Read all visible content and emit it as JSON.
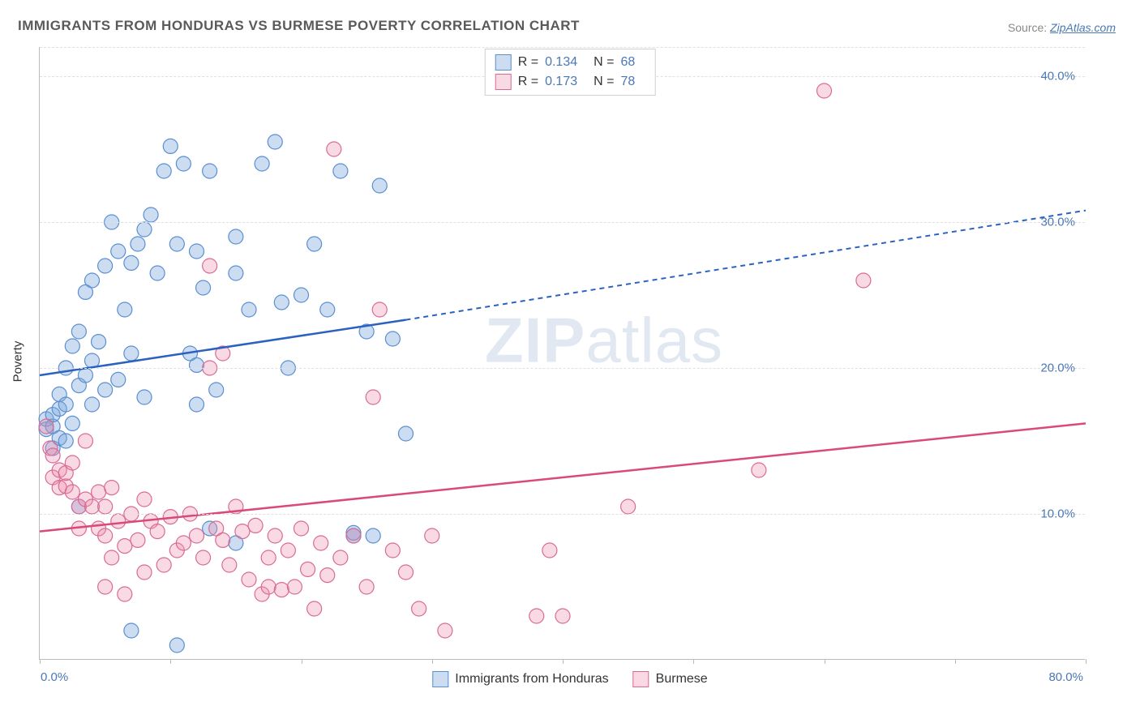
{
  "title": "IMMIGRANTS FROM HONDURAS VS BURMESE POVERTY CORRELATION CHART",
  "source_label": "Source: ",
  "source_link": "ZipAtlas.com",
  "ylabel": "Poverty",
  "watermark_zip": "ZIP",
  "watermark_atlas": "atlas",
  "chart": {
    "type": "scatter",
    "xlim": [
      0,
      80
    ],
    "ylim": [
      0,
      42
    ],
    "yticks": [
      10,
      20,
      30,
      40
    ],
    "ytick_labels": [
      "10.0%",
      "20.0%",
      "30.0%",
      "40.0%"
    ],
    "xtick_positions": [
      0,
      10,
      20,
      30,
      40,
      50,
      60,
      70,
      80
    ],
    "xaxis_label_left": "0.0%",
    "xaxis_label_right": "80.0%",
    "grid_color": "#e0e0e0",
    "axis_color": "#bbbbbb",
    "background": "#ffffff"
  },
  "series": [
    {
      "name": "Immigrants from Honduras",
      "r": "0.134",
      "n": "68",
      "fill": "rgba(120,165,220,0.38)",
      "stroke": "#5a8fd0",
      "line_color": "#2b62c0",
      "marker_radius": 9,
      "line_solid": {
        "x1": 0,
        "y1": 19.5,
        "x2": 28,
        "y2": 23.3
      },
      "line_dashed": {
        "x1": 28,
        "y1": 23.3,
        "x2": 80,
        "y2": 30.8
      },
      "points": [
        [
          0.5,
          15.8
        ],
        [
          0.5,
          16.5
        ],
        [
          1,
          16
        ],
        [
          1,
          16.8
        ],
        [
          1,
          14.5
        ],
        [
          1.5,
          15.2
        ],
        [
          1.5,
          17.2
        ],
        [
          1.5,
          18.2
        ],
        [
          2,
          15
        ],
        [
          2,
          17.5
        ],
        [
          2,
          20
        ],
        [
          2.5,
          16.2
        ],
        [
          2.5,
          21.5
        ],
        [
          3,
          18.8
        ],
        [
          3,
          22.5
        ],
        [
          3.5,
          19.5
        ],
        [
          3.5,
          25.2
        ],
        [
          4,
          17.5
        ],
        [
          4,
          20.5
        ],
        [
          4,
          26
        ],
        [
          4.5,
          21.8
        ],
        [
          5,
          18.5
        ],
        [
          5,
          27
        ],
        [
          5.5,
          30
        ],
        [
          6,
          19.2
        ],
        [
          6,
          28
        ],
        [
          6.5,
          24
        ],
        [
          7,
          21
        ],
        [
          7,
          27.2
        ],
        [
          7.5,
          28.5
        ],
        [
          8,
          18
        ],
        [
          8,
          29.5
        ],
        [
          8.5,
          30.5
        ],
        [
          9,
          26.5
        ],
        [
          9.5,
          33.5
        ],
        [
          10,
          35.2
        ],
        [
          10.5,
          28.5
        ],
        [
          11,
          34
        ],
        [
          11.5,
          21
        ],
        [
          12,
          20.2
        ],
        [
          12,
          28
        ],
        [
          12.5,
          25.5
        ],
        [
          13,
          33.5
        ],
        [
          13.5,
          18.5
        ],
        [
          15,
          29
        ],
        [
          15,
          26.5
        ],
        [
          16,
          24
        ],
        [
          17,
          34
        ],
        [
          18,
          35.5
        ],
        [
          18.5,
          24.5
        ],
        [
          19,
          20
        ],
        [
          20,
          25
        ],
        [
          21,
          28.5
        ],
        [
          22,
          24
        ],
        [
          23,
          33.5
        ],
        [
          24,
          8.5
        ],
        [
          25,
          22.5
        ],
        [
          26,
          32.5
        ],
        [
          27,
          22
        ],
        [
          28,
          15.5
        ],
        [
          25.5,
          8.5
        ],
        [
          10.5,
          1
        ],
        [
          7,
          2
        ],
        [
          24,
          8.7
        ],
        [
          15,
          8
        ],
        [
          13,
          9
        ],
        [
          12,
          17.5
        ],
        [
          3,
          10.5
        ]
      ]
    },
    {
      "name": "Burmese",
      "r": "0.173",
      "n": "78",
      "fill": "rgba(235,140,170,0.32)",
      "stroke": "#d96a95",
      "line_color": "#d94a7a",
      "marker_radius": 9,
      "line_solid": {
        "x1": 0,
        "y1": 8.8,
        "x2": 80,
        "y2": 16.2
      },
      "points": [
        [
          0.5,
          16
        ],
        [
          0.8,
          14.5
        ],
        [
          1,
          12.5
        ],
        [
          1,
          14
        ],
        [
          1.5,
          13
        ],
        [
          1.5,
          11.8
        ],
        [
          2,
          11.9
        ],
        [
          2,
          12.8
        ],
        [
          2.5,
          11.5
        ],
        [
          2.5,
          13.5
        ],
        [
          3,
          10.5
        ],
        [
          3,
          9
        ],
        [
          3.5,
          11
        ],
        [
          3.5,
          15
        ],
        [
          4,
          10.5
        ],
        [
          4.5,
          9
        ],
        [
          4.5,
          11.5
        ],
        [
          5,
          8.5
        ],
        [
          5,
          10.5
        ],
        [
          5.5,
          7
        ],
        [
          5.5,
          11.8
        ],
        [
          6,
          9.5
        ],
        [
          6.5,
          7.8
        ],
        [
          7,
          10
        ],
        [
          7.5,
          8.2
        ],
        [
          8,
          11
        ],
        [
          8,
          6
        ],
        [
          8.5,
          9.5
        ],
        [
          9,
          8.8
        ],
        [
          9.5,
          6.5
        ],
        [
          10,
          9.8
        ],
        [
          10.5,
          7.5
        ],
        [
          11,
          8
        ],
        [
          11.5,
          10
        ],
        [
          12,
          8.5
        ],
        [
          12.5,
          7
        ],
        [
          13,
          27
        ],
        [
          13,
          20
        ],
        [
          13.5,
          9
        ],
        [
          14,
          8.2
        ],
        [
          14,
          21
        ],
        [
          14.5,
          6.5
        ],
        [
          15,
          10.5
        ],
        [
          15.5,
          8.8
        ],
        [
          16,
          5.5
        ],
        [
          16.5,
          9.2
        ],
        [
          17,
          4.5
        ],
        [
          17.5,
          7
        ],
        [
          17.5,
          5
        ],
        [
          18,
          8.5
        ],
        [
          18.5,
          4.8
        ],
        [
          19,
          7.5
        ],
        [
          19.5,
          5
        ],
        [
          20,
          9
        ],
        [
          20.5,
          6.2
        ],
        [
          21,
          3.5
        ],
        [
          21.5,
          8
        ],
        [
          22,
          5.8
        ],
        [
          22.5,
          35
        ],
        [
          23,
          7
        ],
        [
          24,
          8.5
        ],
        [
          25,
          5
        ],
        [
          25.5,
          18
        ],
        [
          26,
          24
        ],
        [
          27,
          7.5
        ],
        [
          28,
          6
        ],
        [
          29,
          3.5
        ],
        [
          30,
          8.5
        ],
        [
          31,
          2
        ],
        [
          38,
          3
        ],
        [
          40,
          3
        ],
        [
          39,
          7.5
        ],
        [
          45,
          10.5
        ],
        [
          55,
          13
        ],
        [
          60,
          39
        ],
        [
          63,
          26
        ],
        [
          5,
          5
        ],
        [
          6.5,
          4.5
        ]
      ]
    }
  ],
  "stats_legend": {
    "r_label": "R",
    "n_label": "N",
    "eq": "="
  },
  "colors": {
    "tick_label": "#4a78b5",
    "title": "#5a5a5a"
  }
}
